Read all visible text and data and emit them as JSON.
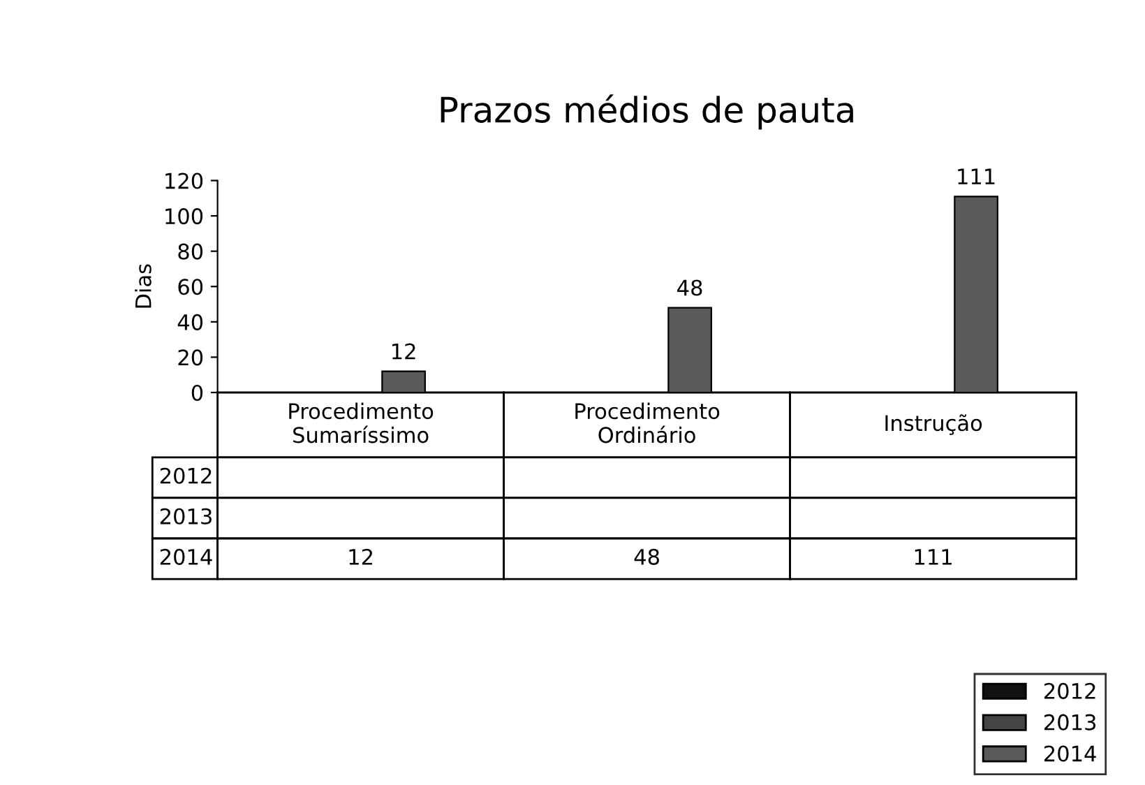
{
  "chart_data": {
    "type": "bar",
    "title": "Prazos médios de pauta",
    "ylabel": "Dias",
    "categories": [
      "Procedimento\nSumaríssimo",
      "Procedimento\nOrdinário",
      "Instrução"
    ],
    "series": [
      {
        "name": "2012",
        "color": "#111111",
        "values": [
          null,
          null,
          null
        ]
      },
      {
        "name": "2013",
        "color": "#444444",
        "values": [
          null,
          null,
          null
        ]
      },
      {
        "name": "2014",
        "color": "#5a5a5a",
        "values": [
          12,
          48,
          111
        ],
        "value_labels": [
          "12",
          "48",
          "111"
        ]
      }
    ],
    "ylim": [
      0,
      120
    ],
    "yticks": [
      0,
      20,
      40,
      60,
      80,
      100,
      120
    ],
    "data_labels": true,
    "annotations": [
      "12",
      "48",
      "111"
    ],
    "grid": false,
    "legend": "bottom right"
  }
}
